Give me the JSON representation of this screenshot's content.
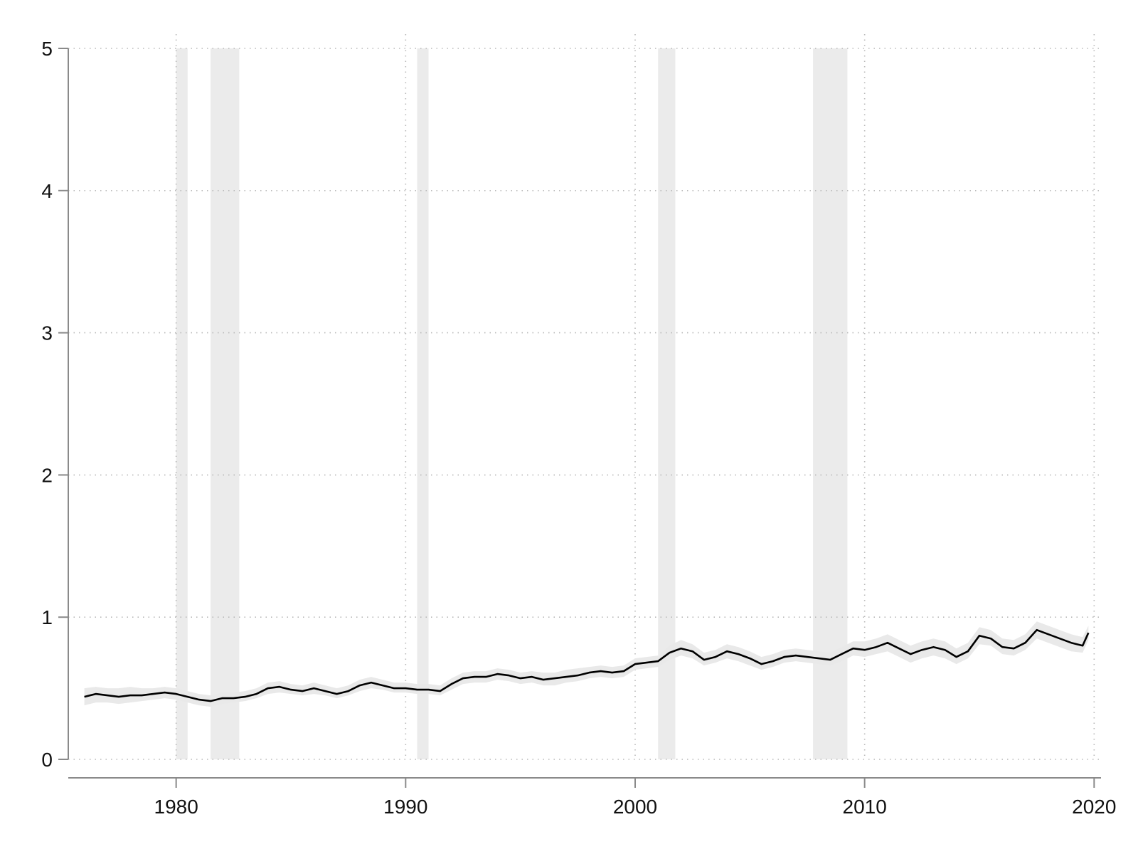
{
  "chart_data": {
    "type": "line",
    "title": "",
    "xlabel": "",
    "ylabel": "",
    "xlim": [
      1975.3,
      2020.3
    ],
    "ylim": [
      0,
      5
    ],
    "x_ticks": [
      1980,
      1990,
      2000,
      2010,
      2020
    ],
    "x_tick_labels": [
      "1980",
      "1990",
      "2000",
      "2010",
      "2020"
    ],
    "y_ticks": [
      0,
      1,
      2,
      3,
      4,
      5
    ],
    "y_tick_labels": [
      "0",
      "1",
      "2",
      "3",
      "4",
      "5"
    ],
    "grid": true,
    "legend": "none",
    "colors": {
      "line": "#000000",
      "band": "#e9e9e9",
      "recession": "#ebebeb",
      "grid": "#b8b8b8",
      "axis": "#8a8a8a"
    },
    "recessions": [
      [
        1980.0,
        1980.5
      ],
      [
        1981.5,
        1982.75
      ],
      [
        1990.5,
        1991.0
      ],
      [
        2001.0,
        2001.75
      ],
      [
        2007.75,
        2009.25
      ]
    ],
    "series": [
      {
        "x": [
          1976.0,
          1976.5,
          1977.0,
          1977.5,
          1978.0,
          1978.5,
          1979.0,
          1979.5,
          1980.0,
          1980.5,
          1981.0,
          1981.5,
          1982.0,
          1982.5,
          1983.0,
          1983.5,
          1984.0,
          1984.5,
          1985.0,
          1985.5,
          1986.0,
          1986.5,
          1987.0,
          1987.5,
          1988.0,
          1988.5,
          1989.0,
          1989.5,
          1990.0,
          1990.5,
          1991.0,
          1991.5,
          1992.0,
          1992.5,
          1993.0,
          1993.5,
          1994.0,
          1994.5,
          1995.0,
          1995.5,
          1996.0,
          1996.5,
          1997.0,
          1997.5,
          1998.0,
          1998.5,
          1999.0,
          1999.5,
          2000.0,
          2000.5,
          2001.0,
          2001.5,
          2002.0,
          2002.5,
          2003.0,
          2003.5,
          2004.0,
          2004.5,
          2005.0,
          2005.5,
          2006.0,
          2006.5,
          2007.0,
          2007.5,
          2008.0,
          2008.5,
          2009.0,
          2009.5,
          2010.0,
          2010.5,
          2011.0,
          2011.5,
          2012.0,
          2012.5,
          2013.0,
          2013.5,
          2014.0,
          2014.5,
          2015.0,
          2015.5,
          2016.0,
          2016.5,
          2017.0,
          2017.5,
          2018.0,
          2018.5,
          2019.0,
          2019.5,
          2019.75
        ],
        "values": [
          0.44,
          0.46,
          0.45,
          0.44,
          0.45,
          0.45,
          0.46,
          0.47,
          0.46,
          0.44,
          0.42,
          0.41,
          0.43,
          0.43,
          0.44,
          0.46,
          0.5,
          0.51,
          0.49,
          0.48,
          0.5,
          0.48,
          0.46,
          0.48,
          0.52,
          0.54,
          0.52,
          0.5,
          0.5,
          0.49,
          0.49,
          0.48,
          0.53,
          0.57,
          0.58,
          0.58,
          0.6,
          0.59,
          0.57,
          0.58,
          0.56,
          0.57,
          0.58,
          0.59,
          0.61,
          0.62,
          0.61,
          0.62,
          0.67,
          0.68,
          0.69,
          0.75,
          0.78,
          0.76,
          0.7,
          0.72,
          0.76,
          0.74,
          0.71,
          0.67,
          0.69,
          0.72,
          0.73,
          0.72,
          0.71,
          0.7,
          0.74,
          0.78,
          0.77,
          0.79,
          0.82,
          0.78,
          0.74,
          0.77,
          0.79,
          0.77,
          0.72,
          0.76,
          0.87,
          0.85,
          0.79,
          0.78,
          0.82,
          0.91,
          0.88,
          0.85,
          0.82,
          0.8,
          0.89
        ],
        "lower": [
          0.38,
          0.4,
          0.4,
          0.39,
          0.4,
          0.41,
          0.42,
          0.43,
          0.42,
          0.4,
          0.38,
          0.37,
          0.39,
          0.4,
          0.41,
          0.43,
          0.46,
          0.47,
          0.46,
          0.45,
          0.46,
          0.45,
          0.43,
          0.45,
          0.48,
          0.5,
          0.49,
          0.47,
          0.47,
          0.46,
          0.46,
          0.45,
          0.49,
          0.53,
          0.54,
          0.54,
          0.56,
          0.55,
          0.53,
          0.54,
          0.52,
          0.52,
          0.54,
          0.55,
          0.57,
          0.58,
          0.57,
          0.58,
          0.63,
          0.64,
          0.65,
          0.7,
          0.73,
          0.71,
          0.66,
          0.68,
          0.71,
          0.69,
          0.66,
          0.63,
          0.65,
          0.68,
          0.69,
          0.68,
          0.67,
          0.66,
          0.69,
          0.73,
          0.72,
          0.74,
          0.76,
          0.72,
          0.68,
          0.71,
          0.73,
          0.71,
          0.67,
          0.71,
          0.81,
          0.8,
          0.74,
          0.73,
          0.77,
          0.85,
          0.82,
          0.79,
          0.76,
          0.75,
          0.84
        ],
        "upper": [
          0.5,
          0.51,
          0.5,
          0.5,
          0.51,
          0.5,
          0.5,
          0.51,
          0.5,
          0.48,
          0.46,
          0.45,
          0.47,
          0.47,
          0.48,
          0.5,
          0.54,
          0.55,
          0.53,
          0.52,
          0.54,
          0.52,
          0.5,
          0.52,
          0.56,
          0.58,
          0.56,
          0.54,
          0.54,
          0.53,
          0.53,
          0.52,
          0.57,
          0.61,
          0.62,
          0.62,
          0.64,
          0.63,
          0.61,
          0.62,
          0.61,
          0.61,
          0.63,
          0.64,
          0.65,
          0.66,
          0.65,
          0.66,
          0.71,
          0.72,
          0.73,
          0.8,
          0.84,
          0.81,
          0.75,
          0.77,
          0.81,
          0.79,
          0.76,
          0.72,
          0.74,
          0.77,
          0.78,
          0.77,
          0.76,
          0.75,
          0.79,
          0.83,
          0.83,
          0.85,
          0.88,
          0.84,
          0.8,
          0.83,
          0.85,
          0.83,
          0.78,
          0.82,
          0.93,
          0.91,
          0.85,
          0.84,
          0.88,
          0.97,
          0.94,
          0.91,
          0.88,
          0.86,
          0.94
        ]
      }
    ]
  }
}
